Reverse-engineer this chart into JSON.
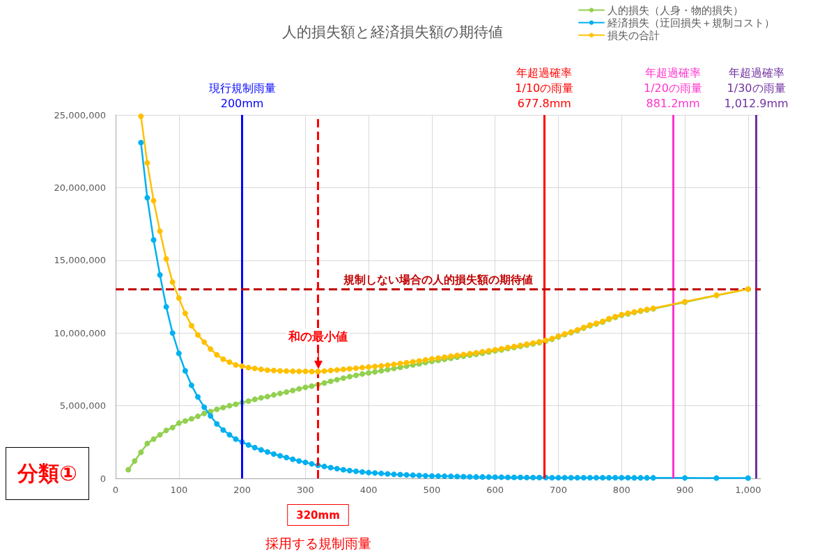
{
  "chart_data": {
    "type": "line",
    "title": "人的損失額と経済損失額の期待値",
    "x": [
      20,
      30,
      40,
      50,
      60,
      70,
      80,
      90,
      100,
      110,
      120,
      130,
      140,
      150,
      160,
      170,
      180,
      190,
      200,
      210,
      220,
      230,
      240,
      250,
      260,
      270,
      280,
      290,
      300,
      310,
      320,
      330,
      340,
      350,
      360,
      370,
      380,
      390,
      400,
      410,
      420,
      430,
      440,
      450,
      460,
      470,
      480,
      490,
      500,
      510,
      520,
      530,
      540,
      550,
      560,
      570,
      580,
      590,
      600,
      610,
      620,
      630,
      640,
      650,
      660,
      670,
      680,
      690,
      700,
      710,
      720,
      730,
      740,
      750,
      760,
      770,
      780,
      790,
      800,
      810,
      820,
      830,
      840,
      850,
      900,
      950,
      1000
    ],
    "series": [
      {
        "name": "人的損失（人身・物的損失）",
        "color": "#92d050",
        "values": [
          600000,
          1200000,
          1800000,
          2400000,
          2700000,
          3000000,
          3300000,
          3500000,
          3800000,
          3950000,
          4100000,
          4270000,
          4470000,
          4600000,
          4750000,
          4870000,
          5000000,
          5100000,
          5220000,
          5320000,
          5440000,
          5540000,
          5630000,
          5740000,
          5840000,
          5940000,
          6050000,
          6160000,
          6260000,
          6350000,
          6450000,
          6560000,
          6680000,
          6790000,
          6900000,
          7000000,
          7090000,
          7180000,
          7260000,
          7330000,
          7400000,
          7480000,
          7560000,
          7640000,
          7720000,
          7800000,
          7880000,
          7970000,
          8050000,
          8120000,
          8190000,
          8260000,
          8330000,
          8400000,
          8470000,
          8540000,
          8610000,
          8690000,
          8770000,
          8840000,
          8930000,
          9000000,
          9080000,
          9170000,
          9250000,
          9340000,
          9440000,
          9570000,
          9730000,
          9890000,
          10020000,
          10160000,
          10330000,
          10500000,
          10620000,
          10750000,
          10940000,
          11070000,
          11220000,
          11310000,
          11410000,
          11500000,
          11580000,
          11660000,
          12120000,
          12580000,
          13010000
        ]
      },
      {
        "name": "経済損失（迂回損失＋規制コスト）",
        "color": "#00b0f0",
        "values": [
          null,
          null,
          23100000,
          19300000,
          16400000,
          14000000,
          11800000,
          10000000,
          8600000,
          7400000,
          6400000,
          5600000,
          4900000,
          4300000,
          3750000,
          3330000,
          3000000,
          2700000,
          2500000,
          2300000,
          2120000,
          1960000,
          1820000,
          1680000,
          1560000,
          1440000,
          1320000,
          1200000,
          1100000,
          1000000,
          900000,
          820000,
          740000,
          670000,
          600000,
          540000,
          490000,
          440000,
          400000,
          370000,
          340000,
          310000,
          280000,
          260000,
          240000,
          220000,
          200000,
          180000,
          170000,
          160000,
          150000,
          140000,
          130000,
          120000,
          110000,
          100000,
          100000,
          90000,
          80000,
          80000,
          70000,
          70000,
          70000,
          60000,
          60000,
          60000,
          60000,
          50000,
          50000,
          50000,
          50000,
          50000,
          50000,
          50000,
          50000,
          50000,
          50000,
          50000,
          50000,
          50000,
          40000,
          40000,
          40000,
          40000,
          30000,
          20000,
          20000
        ]
      },
      {
        "name": "損失の合計",
        "color": "#ffc000",
        "values": [
          null,
          null,
          24900000,
          21700000,
          19100000,
          17000000,
          15100000,
          13500000,
          12400000,
          11350000,
          10500000,
          9870000,
          9370000,
          8900000,
          8500000,
          8200000,
          8000000,
          7800000,
          7720000,
          7620000,
          7560000,
          7500000,
          7450000,
          7420000,
          7400000,
          7380000,
          7370000,
          7360000,
          7360000,
          7350000,
          7350000,
          7380000,
          7420000,
          7460000,
          7500000,
          7540000,
          7580000,
          7620000,
          7660000,
          7700000,
          7740000,
          7790000,
          7840000,
          7900000,
          7960000,
          8020000,
          8080000,
          8150000,
          8220000,
          8280000,
          8340000,
          8400000,
          8460000,
          8520000,
          8580000,
          8640000,
          8710000,
          8780000,
          8850000,
          8920000,
          9000000,
          9070000,
          9150000,
          9230000,
          9310000,
          9400000,
          9500000,
          9620000,
          9780000,
          9940000,
          10070000,
          10210000,
          10380000,
          10550000,
          10670000,
          10800000,
          10990000,
          11120000,
          11270000,
          11360000,
          11450000,
          11540000,
          11620000,
          11700000,
          12150000,
          12600000,
          13030000
        ]
      }
    ],
    "xlim": [
      0,
      1020
    ],
    "xticks": [
      0,
      100,
      200,
      300,
      400,
      500,
      600,
      700,
      800,
      900,
      {
        "value": 1000,
        "label": "1,000"
      }
    ],
    "ylim": [
      0,
      25000000
    ],
    "yticks": [
      {
        "value": 0,
        "label": "0"
      },
      {
        "value": 5000000,
        "label": "5,000,000"
      },
      {
        "value": 10000000,
        "label": "10,000,000"
      },
      {
        "value": 15000000,
        "label": "15,000,000"
      },
      {
        "value": 20000000,
        "label": "20,000,000"
      },
      {
        "value": 25000000,
        "label": "25,000,000"
      }
    ],
    "grid": true,
    "legend": "top right",
    "marker": "circle",
    "line_style": "solid",
    "ref_lines": [
      {
        "axis": "x",
        "value": 200,
        "label": "現行規制雨量\n200mm",
        "color": "#0000ff",
        "line_style": "solid"
      },
      {
        "axis": "x",
        "value": 677.8,
        "label": "年超過確率\n1/10の雨量\n677.8mm",
        "color": "#ff0000",
        "line_style": "solid"
      },
      {
        "axis": "x",
        "value": 881.2,
        "label": "年超過確率\n1/20の雨量\n881.2mm",
        "color": "#ff33cc",
        "line_style": "solid"
      },
      {
        "axis": "x",
        "value": 1012.9,
        "label": "年超過確率\n1/30の雨量\n1,012.9mm",
        "color": "#7030a0",
        "line_style": "solid"
      },
      {
        "axis": "y",
        "value": 13000000,
        "label": "規制しない場合の人的損失額の期待値",
        "color": "#c00000",
        "line_style": "dashed"
      },
      {
        "axis": "x",
        "value": 320,
        "label": "320mm",
        "color": "#ff0000",
        "line_style": "dashed"
      }
    ],
    "annotations": [
      {
        "text": "和の最小値",
        "x": 320,
        "y": 7350000
      },
      "採用する規制雨量",
      "分類①"
    ]
  }
}
